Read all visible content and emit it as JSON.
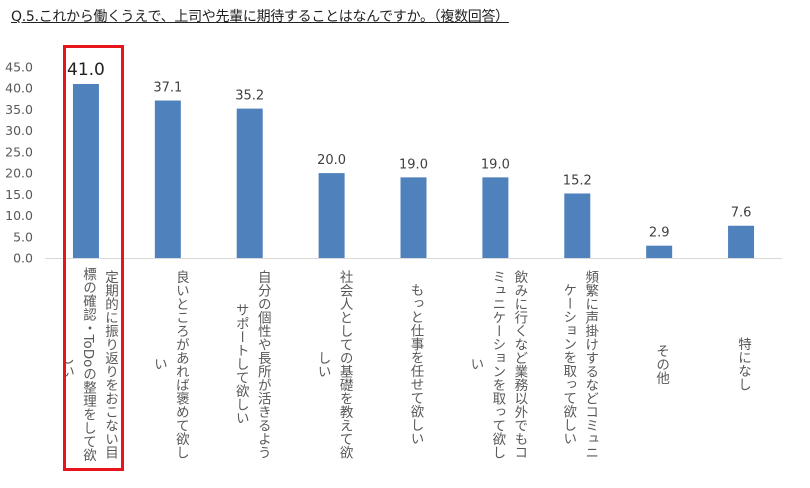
{
  "chart_data": {
    "type": "bar",
    "title": "Q.5.これから働くうえで、上司や先輩に期待することはなんですか。（複数回答）",
    "categories": [
      "定期的に振り返りをおこない目\n標の確認・ToDoの整理をして欲\nしい",
      "良いところがあれば褒めて欲しい",
      "自分の個性や長所が活きるよう\nサポートして欲しい",
      "社会人としての基礎を教えて欲\nしい",
      "もっと仕事を任せて欲しい",
      "飲みに行くなど業務以外でもコ\nミュニケーションを取って欲しい",
      "頻繁に声掛けするなどコミュニ\nケーションを取って欲しい",
      "その他",
      "特になし"
    ],
    "values": [
      41.0,
      37.1,
      35.2,
      20.0,
      19.0,
      19.0,
      15.2,
      2.9,
      7.6
    ],
    "data_labels": [
      "41.0",
      "37.1",
      "35.2",
      "20.0",
      "19.0",
      "19.0",
      "15.2",
      "2.9",
      "7.6"
    ],
    "yticks": [
      "0.0",
      "5.0",
      "10.0",
      "15.0",
      "20.0",
      "25.0",
      "30.0",
      "35.0",
      "40.0",
      "45.0"
    ],
    "ylim": [
      0,
      45
    ],
    "xlabel": "",
    "ylabel": "",
    "grid": false,
    "highlighted_category_index": 0,
    "colors": {
      "bar": "#4f81bd",
      "highlight_box": "#e8141c",
      "axis": "#d9d9d9"
    }
  }
}
